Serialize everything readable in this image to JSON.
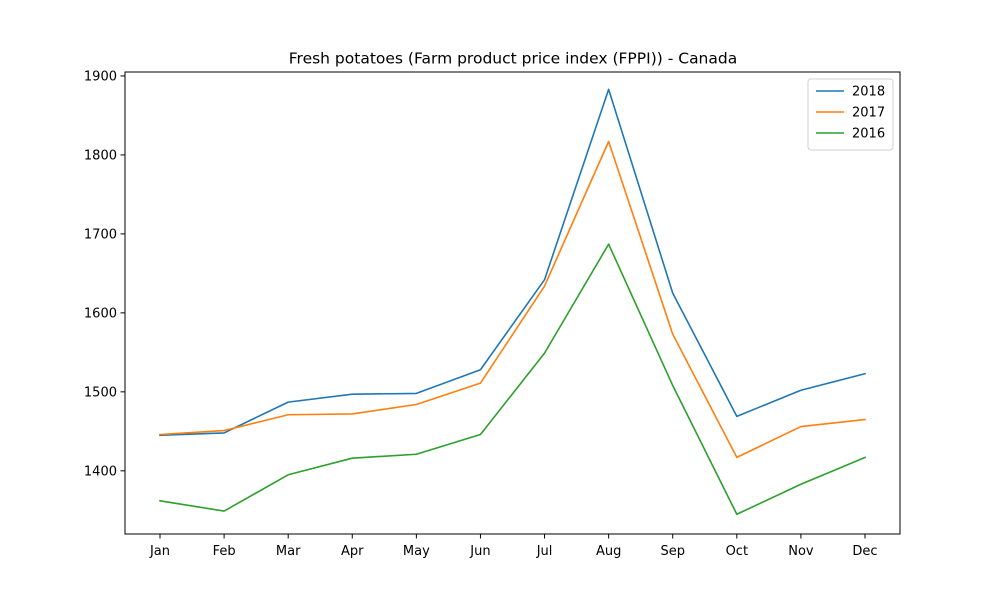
{
  "chart_data": {
    "type": "line",
    "title": "Fresh potatoes (Farm product price index (FPPI)) - Canada",
    "xlabel": "",
    "ylabel": "",
    "categories": [
      "Jan",
      "Feb",
      "Mar",
      "Apr",
      "May",
      "Jun",
      "Jul",
      "Aug",
      "Sep",
      "Oct",
      "Nov",
      "Dec"
    ],
    "ylim": [
      1320,
      1905
    ],
    "yticks": [
      1400,
      1500,
      1600,
      1700,
      1800,
      1900
    ],
    "grid": false,
    "legend_position": "top-right",
    "series": [
      {
        "name": "2018",
        "color": "#1f77b4",
        "values": [
          1445,
          1448,
          1487,
          1497,
          1498,
          1528,
          1642,
          1883,
          1625,
          1469,
          1502,
          1523
        ]
      },
      {
        "name": "2017",
        "color": "#ff7f0e",
        "values": [
          1446,
          1451,
          1471,
          1472,
          1484,
          1511,
          1634,
          1817,
          1573,
          1417,
          1456,
          1465
        ]
      },
      {
        "name": "2016",
        "color": "#2ca02c",
        "values": [
          1362,
          1349,
          1395,
          1416,
          1421,
          1446,
          1549,
          1687,
          1508,
          1345,
          1383,
          1417
        ]
      }
    ]
  }
}
